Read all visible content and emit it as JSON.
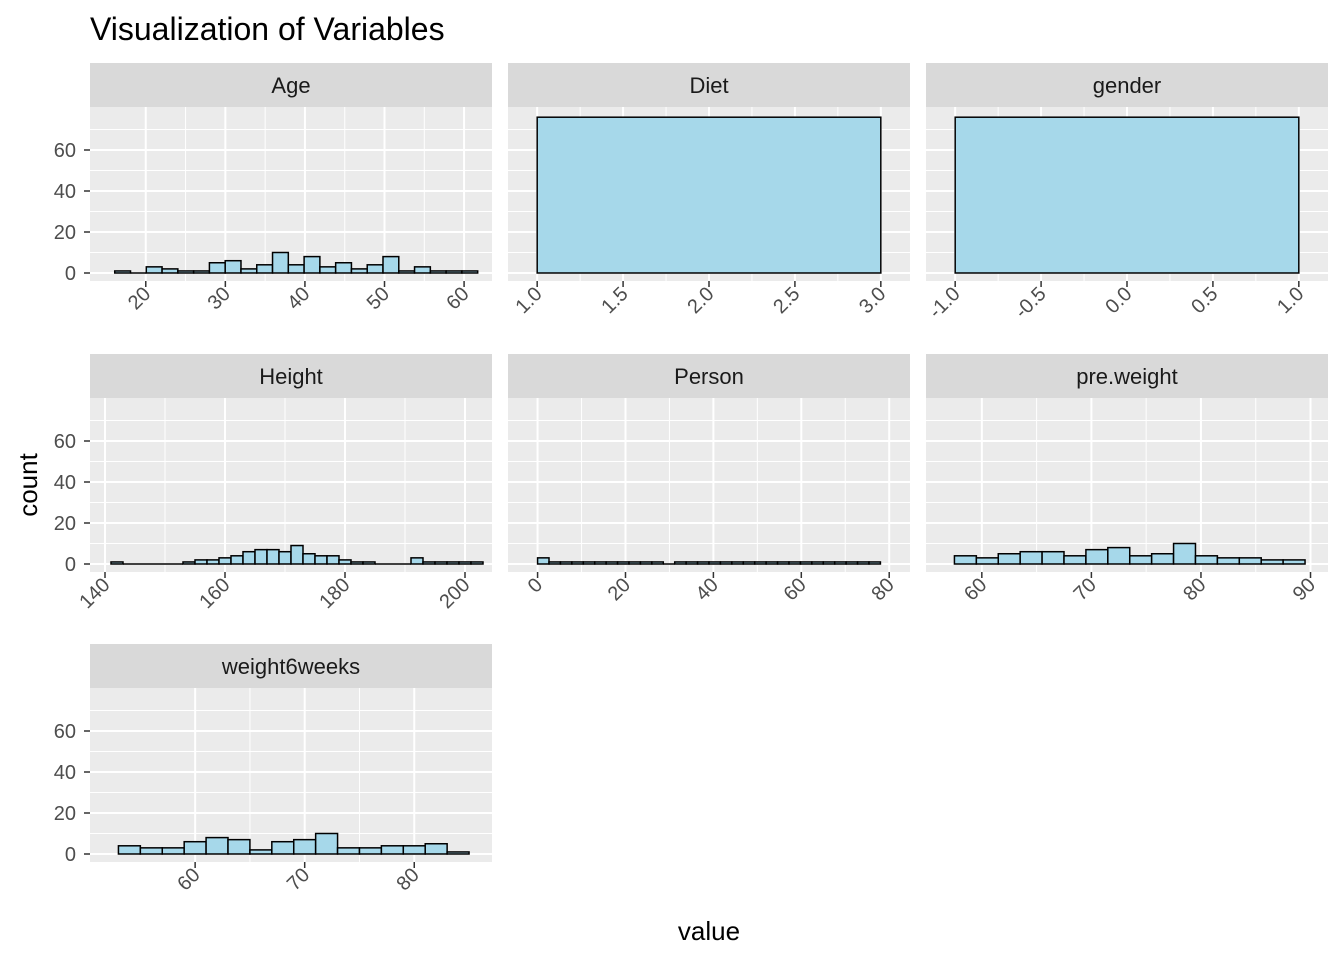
{
  "chart_data": {
    "type": "bar",
    "title": "Visualization of Variables",
    "xlabel": "value",
    "ylabel": "count",
    "y_ticks": [
      0,
      20,
      40,
      60
    ],
    "ylim": [
      0,
      80
    ],
    "colors": {
      "panel_bg": "#ebebeb",
      "strip_bg": "#d9d9d9",
      "grid": "#ffffff",
      "bar_fill": "#a6d8ea",
      "bar_stroke": "#000000"
    },
    "facets": [
      {
        "name": "Age",
        "xlim": [
          14.5,
          62.0
        ],
        "x_ticks": [
          "20",
          "30",
          "40",
          "50",
          "60"
        ],
        "x_tick_values": [
          20,
          30,
          40,
          50,
          60
        ],
        "bin_start": 16.1,
        "bin_width": 1.983,
        "values": [
          1,
          0,
          3,
          2,
          1,
          1,
          5,
          6,
          2,
          4,
          10,
          4,
          8,
          3,
          5,
          2,
          4,
          8,
          1,
          3,
          1,
          1,
          1
        ]
      },
      {
        "name": "Diet",
        "xlim": [
          0.9,
          3.1
        ],
        "x_ticks": [
          "1.0",
          "1.5",
          "2.0",
          "2.5",
          "3.0"
        ],
        "x_tick_values": [
          1.0,
          1.5,
          2.0,
          2.5,
          3.0
        ],
        "bin_start": 1.0,
        "bin_width": 2.0,
        "values": [
          76
        ]
      },
      {
        "name": "gender",
        "xlim": [
          -1.1,
          1.1
        ],
        "x_ticks": [
          "-1.0",
          "-0.5",
          "0.0",
          "0.5",
          "1.0"
        ],
        "x_tick_values": [
          -1.0,
          -0.5,
          0.0,
          0.5,
          1.0
        ],
        "bin_start": -1.0,
        "bin_width": 2.0,
        "values": [
          76
        ]
      },
      {
        "name": "Height",
        "xlim": [
          139.5,
          202.5
        ],
        "x_ticks": [
          "140",
          "160",
          "180",
          "200"
        ],
        "x_tick_values": [
          140,
          160,
          180,
          200
        ],
        "bin_start": 141.0,
        "bin_width": 2.0,
        "values": [
          1,
          0,
          0,
          0,
          0,
          0,
          1,
          2,
          2,
          3,
          4,
          6,
          7,
          7,
          6,
          9,
          5,
          4,
          4,
          2,
          1,
          1,
          0,
          0,
          0,
          3,
          1,
          1,
          1,
          1,
          1
        ]
      },
      {
        "name": "Person",
        "xlim": [
          -4.0,
          82.0
        ],
        "x_ticks": [
          "0",
          "20",
          "40",
          "60",
          "80"
        ],
        "x_tick_values": [
          0,
          20,
          40,
          60,
          80
        ],
        "bin_start": 0.0,
        "bin_width": 2.6,
        "values": [
          3,
          1,
          1,
          1,
          1,
          1,
          1,
          1,
          1,
          1,
          1,
          0,
          1,
          1,
          1,
          1,
          1,
          1,
          1,
          1,
          1,
          1,
          1,
          1,
          1,
          1,
          1,
          1,
          1,
          1
        ]
      },
      {
        "name": "pre.weight",
        "xlim": [
          56.0,
          90.5
        ],
        "x_ticks": [
          "60",
          "70",
          "80",
          "90"
        ],
        "x_tick_values": [
          60,
          70,
          80,
          90
        ],
        "bin_start": 57.5,
        "bin_width": 2.0,
        "values": [
          4,
          3,
          5,
          6,
          6,
          4,
          7,
          8,
          4,
          5,
          10,
          4,
          3,
          3,
          2,
          2
        ]
      },
      {
        "name": "weight6weeks",
        "xlim": [
          51.5,
          86.0
        ],
        "x_ticks": [
          "60",
          "70",
          "80"
        ],
        "x_tick_values": [
          60,
          70,
          80
        ],
        "bin_start": 53.0,
        "bin_width": 2.0,
        "values": [
          4,
          3,
          3,
          6,
          8,
          7,
          2,
          6,
          7,
          10,
          3,
          3,
          4,
          4,
          5,
          1
        ]
      }
    ]
  }
}
